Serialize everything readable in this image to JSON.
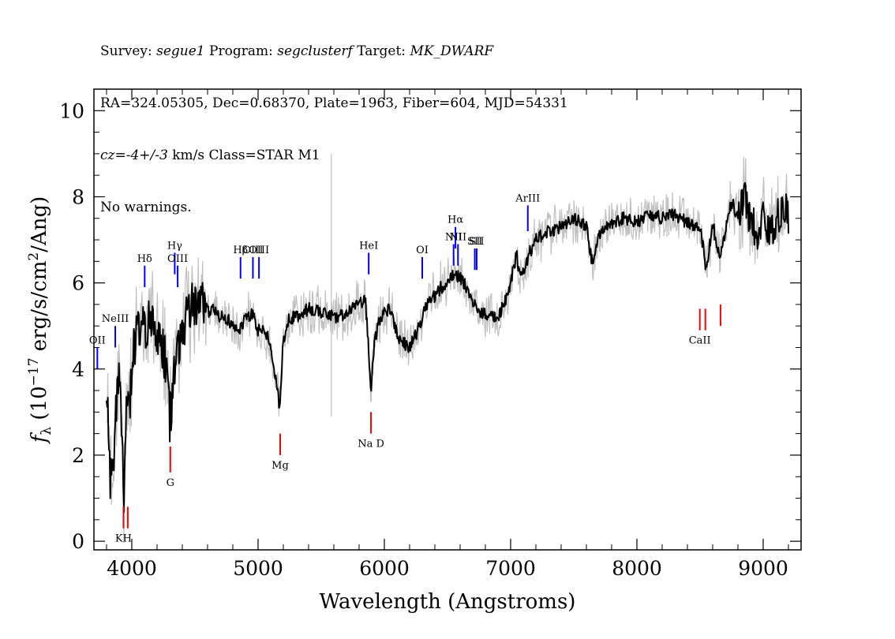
{
  "header": {
    "line1": {
      "survey_label": "Survey: ",
      "survey": "segue1",
      "program_label": " Program: ",
      "program": "segclusterf",
      "target_label": " Target: ",
      "target": "MK_DWARF"
    },
    "line2": "RA=324.05305, Dec=0.68370, Plate=1963, Fiber=604, MJD=54331",
    "line3": {
      "cz_label": "cz=",
      "cz_value": "-4+/-3",
      "rest": " km/s Class=STAR M1"
    },
    "line4": "No warnings."
  },
  "chart_data": {
    "type": "line",
    "xlabel": "Wavelength (Angstroms)",
    "ylabel": "f_λ (10^-17 erg/s/cm^2/Ang)",
    "xlim": [
      3700,
      9300
    ],
    "ylim": [
      -0.2,
      10.5
    ],
    "x_ticks": [
      4000,
      5000,
      6000,
      7000,
      8000,
      9000
    ],
    "y_ticks": [
      0,
      2,
      4,
      6,
      8,
      10
    ],
    "colors": {
      "flux": "#000000",
      "error": "#c0c0c0",
      "emission": "#0000ff",
      "absorption": "#ff0000"
    },
    "series": [
      {
        "x": [
          3800,
          3830,
          3860,
          3880,
          3900,
          3920,
          3940,
          3960,
          3980,
          4000,
          4050,
          4100,
          4150,
          4200,
          4250,
          4290,
          4300,
          4330,
          4360,
          4380,
          4400,
          4450,
          4500,
          4550,
          4600,
          4650,
          4700,
          4750,
          4800,
          4850,
          4900,
          4950,
          5000,
          5050,
          5100,
          5150,
          5170,
          5200,
          5250,
          5300,
          5400,
          5500,
          5600,
          5700,
          5800,
          5850,
          5880,
          5895,
          5910,
          5950,
          6000,
          6050,
          6100,
          6150,
          6200,
          6250,
          6300,
          6350,
          6400,
          6450,
          6500,
          6550,
          6600,
          6650,
          6700,
          6750,
          6800,
          6850,
          6900,
          6950,
          7000,
          7050,
          7060,
          7100,
          7150,
          7200,
          7300,
          7400,
          7500,
          7600,
          7650,
          7700,
          7800,
          7900,
          8000,
          8100,
          8200,
          8300,
          8400,
          8500,
          8550,
          8600,
          8650,
          8700,
          8750,
          8800,
          8850,
          8900,
          8950,
          9000,
          9050,
          9100,
          9150,
          9200
        ],
        "y": [
          3.8,
          1.3,
          2.2,
          3.2,
          3.7,
          2.5,
          1.0,
          3.4,
          2.8,
          4.2,
          5.0,
          4.9,
          5.1,
          4.7,
          4.4,
          3.8,
          2.8,
          3.6,
          4.5,
          4.7,
          4.8,
          5.4,
          5.5,
          5.6,
          5.3,
          5.4,
          5.2,
          5.2,
          5.0,
          4.9,
          5.2,
          5.3,
          4.9,
          4.9,
          4.6,
          3.6,
          3.1,
          4.7,
          5.2,
          5.2,
          5.4,
          5.3,
          5.2,
          5.3,
          5.5,
          5.6,
          4.2,
          3.3,
          4.3,
          5.1,
          5.3,
          5.4,
          4.8,
          4.6,
          4.5,
          4.8,
          5.2,
          5.6,
          5.7,
          5.9,
          6.0,
          6.2,
          6.1,
          5.9,
          5.6,
          5.3,
          5.3,
          5.2,
          5.2,
          5.5,
          6.0,
          6.7,
          6.4,
          6.2,
          6.7,
          7.0,
          7.2,
          7.3,
          7.5,
          7.3,
          6.4,
          7.1,
          7.4,
          7.5,
          7.4,
          7.6,
          7.5,
          7.6,
          7.4,
          7.3,
          6.3,
          7.4,
          6.6,
          7.2,
          7.9,
          7.5,
          8.0,
          7.5,
          7.2,
          7.5,
          7.3,
          7.4,
          7.8,
          7.5
        ]
      }
    ],
    "spikes": [
      {
        "x": 5580,
        "y_low": 2.9,
        "y_high": 9.0
      }
    ],
    "emission_lines": [
      {
        "label": "OII",
        "x": 3727,
        "y_top": 4.5,
        "y_bottom": 4.0
      },
      {
        "label": "NeIII",
        "x": 3869,
        "y_top": 5.0,
        "y_bottom": 4.5
      },
      {
        "label": "Hδ",
        "x": 4102,
        "y_top": 6.4,
        "y_bottom": 5.9
      },
      {
        "label": "Hγ",
        "x": 4340,
        "y_top": 6.7,
        "y_bottom": 6.2
      },
      {
        "label": "OIII",
        "x": 4363,
        "y_top": 6.4,
        "y_bottom": 5.9
      },
      {
        "label": "Hβ",
        "x": 4861,
        "y_top": 6.6,
        "y_bottom": 6.1
      },
      {
        "label": "OIII",
        "x": 4959,
        "y_top": 6.6,
        "y_bottom": 6.1
      },
      {
        "label": "OIII",
        "x": 5007,
        "y_top": 6.6,
        "y_bottom": 6.1
      },
      {
        "label": "HeI",
        "x": 5876,
        "y_top": 6.7,
        "y_bottom": 6.2
      },
      {
        "label": "OI",
        "x": 6300,
        "y_top": 6.6,
        "y_bottom": 6.1
      },
      {
        "label": "NII",
        "x": 6548,
        "y_top": 6.9,
        "y_bottom": 6.4
      },
      {
        "label": "Hα",
        "x": 6563,
        "y_top": 7.3,
        "y_bottom": 6.8
      },
      {
        "label": "NII",
        "x": 6583,
        "y_top": 6.9,
        "y_bottom": 6.4
      },
      {
        "label": "SII",
        "x": 6716,
        "y_top": 6.8,
        "y_bottom": 6.3
      },
      {
        "label": "SII",
        "x": 6731,
        "y_top": 6.8,
        "y_bottom": 6.3
      },
      {
        "label": "ArIII",
        "x": 7136,
        "y_top": 7.8,
        "y_bottom": 7.2
      }
    ],
    "absorption_lines": [
      {
        "label": "KH",
        "x": 3934,
        "y_top": 0.8,
        "y_bottom": 0.3
      },
      {
        "label": "",
        "x": 3968,
        "y_top": 0.8,
        "y_bottom": 0.3
      },
      {
        "label": "G",
        "x": 4305,
        "y_top": 2.2,
        "y_bottom": 1.6
      },
      {
        "label": "Mg",
        "x": 5175,
        "y_top": 2.5,
        "y_bottom": 2.0
      },
      {
        "label": "Na D",
        "x": 5894,
        "y_top": 3.0,
        "y_bottom": 2.5
      },
      {
        "label": "CaII",
        "x": 8498,
        "y_top": 5.4,
        "y_bottom": 4.9
      },
      {
        "label": "",
        "x": 8542,
        "y_top": 5.4,
        "y_bottom": 4.9
      },
      {
        "label": "",
        "x": 8662,
        "y_top": 5.5,
        "y_bottom": 5.0
      }
    ]
  }
}
